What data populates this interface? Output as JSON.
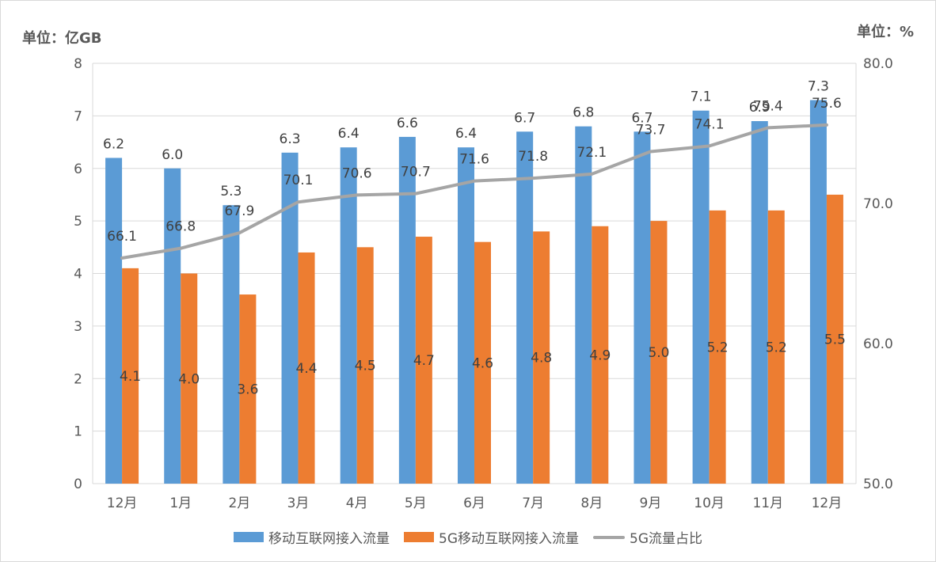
{
  "chart_data": {
    "type": "bar",
    "unit_left": "单位：亿GB",
    "unit_right": "单位：%",
    "categories": [
      "12月",
      "1月",
      "2月",
      "3月",
      "4月",
      "5月",
      "6月",
      "7月",
      "8月",
      "9月",
      "10月",
      "11月",
      "12月"
    ],
    "series": [
      {
        "name": "移动互联网接入流量",
        "type": "bar",
        "axis": "left",
        "color": "#5b9bd5",
        "values": [
          6.2,
          6.0,
          5.3,
          6.3,
          6.4,
          6.6,
          6.4,
          6.7,
          6.8,
          6.7,
          7.1,
          6.9,
          7.3
        ]
      },
      {
        "name": "5G移动互联网接入流量",
        "type": "bar",
        "axis": "left",
        "color": "#ed7d31",
        "values": [
          4.1,
          4.0,
          3.6,
          4.4,
          4.5,
          4.7,
          4.6,
          4.8,
          4.9,
          5.0,
          5.2,
          5.2,
          5.5
        ]
      },
      {
        "name": "5G流量占比",
        "type": "line",
        "axis": "right",
        "color": "#a5a5a5",
        "values": [
          66.1,
          66.8,
          67.9,
          70.1,
          70.6,
          70.7,
          71.6,
          71.8,
          72.1,
          73.7,
          74.1,
          75.4,
          75.6
        ]
      }
    ],
    "y_left": {
      "min": 0,
      "max": 8,
      "ticks": [
        "0",
        "1",
        "2",
        "3",
        "4",
        "5",
        "6",
        "7",
        "8"
      ]
    },
    "y_right": {
      "min": 50,
      "max": 80,
      "ticks": [
        "50.0",
        "60.0",
        "70.0",
        "80.0"
      ]
    },
    "grid": true,
    "legend_position": "bottom"
  }
}
